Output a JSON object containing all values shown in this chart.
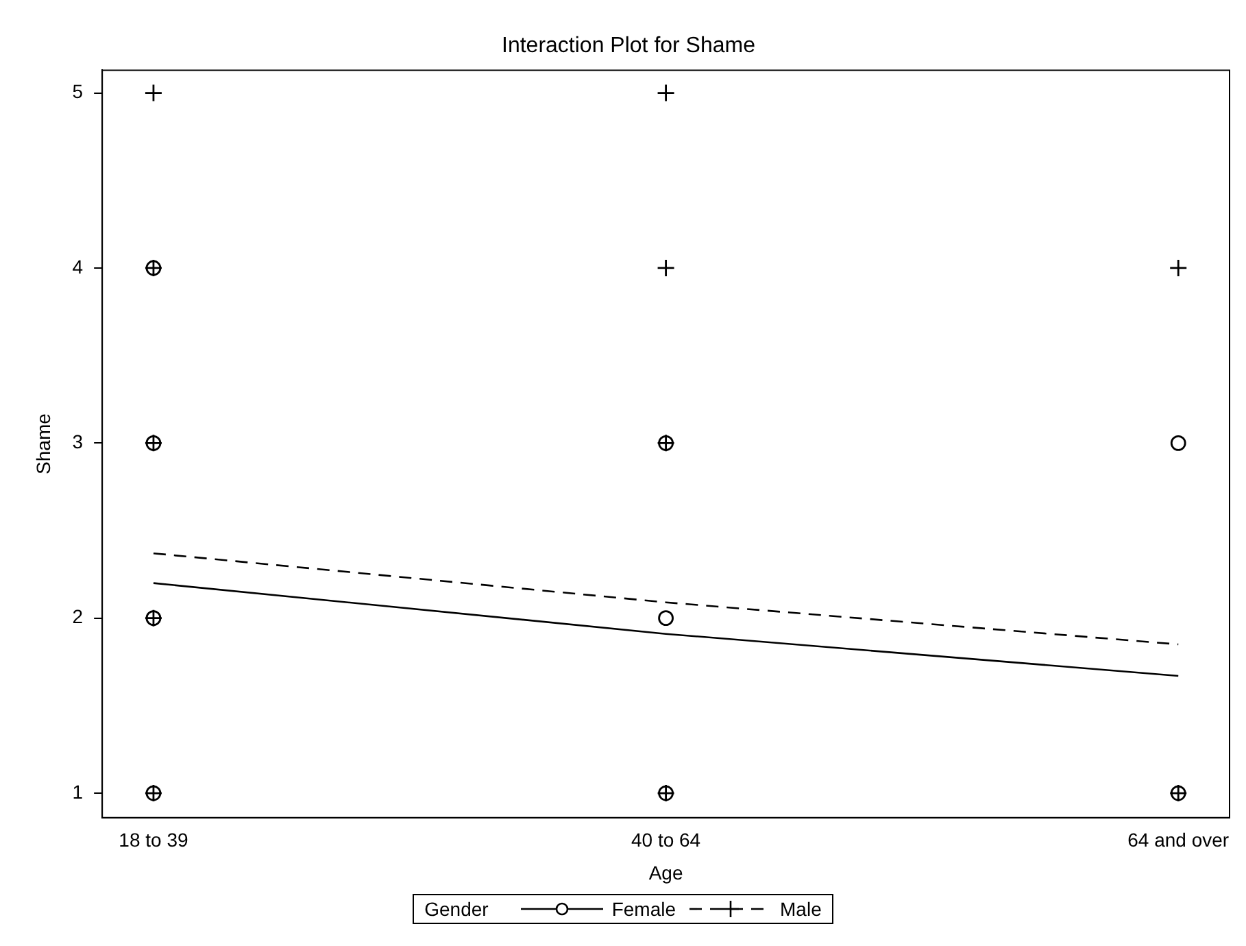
{
  "chart_data": {
    "type": "scatter",
    "title": "Interaction Plot for Shame",
    "xlabel": "Age",
    "ylabel": "Shame",
    "legend_title": "Gender",
    "categories": [
      "18 to 39",
      "40 to 64",
      "64 and over"
    ],
    "ylim": [
      0.86,
      5.13
    ],
    "yticks": [
      1,
      2,
      3,
      4,
      5
    ],
    "grid": false,
    "legend": "bottom",
    "series": [
      {
        "name": "Female",
        "type": "line",
        "color": "#000000",
        "line_style": "solid",
        "marker": "none",
        "values": [
          2.2,
          1.91,
          1.67
        ]
      },
      {
        "name": "Male",
        "type": "line",
        "color": "#000000",
        "line_style": "dashed",
        "marker": "none",
        "values": [
          2.37,
          2.09,
          1.85
        ]
      },
      {
        "type": "scatter",
        "color": "#000000",
        "marker": "circle",
        "x": [
          "18 to 39",
          "18 to 39",
          "18 to 39",
          "18 to 39",
          "40 to 64",
          "40 to 64",
          "40 to 64",
          "64 and over",
          "64 and over"
        ],
        "values": [
          1,
          2,
          3,
          4,
          1,
          2,
          3,
          1,
          3
        ]
      },
      {
        "color": "#000000",
        "marker": "cross",
        "x": [
          "18 to 39",
          "18 to 39",
          "18 to 39",
          "18 to 39",
          "18 to 39",
          "40 to 64",
          "40 to 64",
          "40 to 64",
          "40 to 64",
          "64 and over",
          "64 and over"
        ],
        "values": [
          1,
          2,
          3,
          4,
          5,
          1,
          3,
          4,
          5,
          1,
          4
        ]
      }
    ]
  }
}
